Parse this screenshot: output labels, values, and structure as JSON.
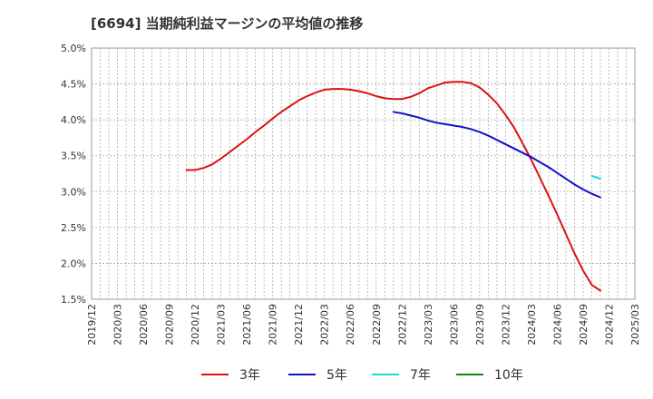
{
  "chart_data": {
    "type": "line",
    "title": "[6694]  当期純利益マージンの平均値の推移",
    "xlabel": "",
    "ylabel": "",
    "ylim": [
      1.5,
      5.0
    ],
    "y_ticks": [
      "5.0%",
      "4.5%",
      "4.0%",
      "3.5%",
      "3.0%",
      "2.5%",
      "2.0%",
      "1.5%"
    ],
    "x_ticks": [
      "2019/12",
      "2020/03",
      "2020/06",
      "2020/09",
      "2020/12",
      "2021/03",
      "2021/06",
      "2021/09",
      "2021/12",
      "2022/03",
      "2022/06",
      "2022/09",
      "2022/12",
      "2023/03",
      "2023/06",
      "2023/09",
      "2023/12",
      "2024/03",
      "2024/06",
      "2024/09",
      "2024/12",
      "2025/03"
    ],
    "grid": true,
    "legend_position": "bottom",
    "series": [
      {
        "name": "3年",
        "color": "#dd1111",
        "points": [
          [
            "2020/11",
            3.3
          ],
          [
            "2020/12",
            3.3
          ],
          [
            "2021/01",
            3.33
          ],
          [
            "2021/02",
            3.38
          ],
          [
            "2021/03",
            3.46
          ],
          [
            "2021/04",
            3.55
          ],
          [
            "2021/05",
            3.64
          ],
          [
            "2021/06",
            3.73
          ],
          [
            "2021/07",
            3.83
          ],
          [
            "2021/08",
            3.92
          ],
          [
            "2021/09",
            4.02
          ],
          [
            "2021/10",
            4.11
          ],
          [
            "2021/11",
            4.19
          ],
          [
            "2021/12",
            4.27
          ],
          [
            "2022/01",
            4.33
          ],
          [
            "2022/02",
            4.38
          ],
          [
            "2022/03",
            4.42
          ],
          [
            "2022/04",
            4.43
          ],
          [
            "2022/05",
            4.43
          ],
          [
            "2022/06",
            4.42
          ],
          [
            "2022/07",
            4.4
          ],
          [
            "2022/08",
            4.37
          ],
          [
            "2022/09",
            4.33
          ],
          [
            "2022/10",
            4.3
          ],
          [
            "2022/11",
            4.29
          ],
          [
            "2022/12",
            4.29
          ],
          [
            "2023/01",
            4.32
          ],
          [
            "2023/02",
            4.37
          ],
          [
            "2023/03",
            4.44
          ],
          [
            "2023/04",
            4.48
          ],
          [
            "2023/05",
            4.52
          ],
          [
            "2023/06",
            4.53
          ],
          [
            "2023/07",
            4.53
          ],
          [
            "2023/08",
            4.51
          ],
          [
            "2023/09",
            4.45
          ],
          [
            "2023/10",
            4.35
          ],
          [
            "2023/11",
            4.23
          ],
          [
            "2023/12",
            4.07
          ],
          [
            "2024/01",
            3.89
          ],
          [
            "2024/02",
            3.67
          ],
          [
            "2024/03",
            3.44
          ],
          [
            "2024/04",
            3.19
          ],
          [
            "2024/05",
            2.94
          ],
          [
            "2024/06",
            2.68
          ],
          [
            "2024/07",
            2.41
          ],
          [
            "2024/08",
            2.14
          ],
          [
            "2024/09",
            1.9
          ],
          [
            "2024/10",
            1.7
          ],
          [
            "2024/11",
            1.62
          ]
        ]
      },
      {
        "name": "5年",
        "color": "#1111cc",
        "points": [
          [
            "2022/11",
            4.11
          ],
          [
            "2022/12",
            4.09
          ],
          [
            "2023/01",
            4.06
          ],
          [
            "2023/02",
            4.03
          ],
          [
            "2023/03",
            3.99
          ],
          [
            "2023/04",
            3.96
          ],
          [
            "2023/05",
            3.94
          ],
          [
            "2023/06",
            3.92
          ],
          [
            "2023/07",
            3.9
          ],
          [
            "2023/08",
            3.87
          ],
          [
            "2023/09",
            3.83
          ],
          [
            "2023/10",
            3.78
          ],
          [
            "2023/11",
            3.72
          ],
          [
            "2023/12",
            3.66
          ],
          [
            "2024/01",
            3.6
          ],
          [
            "2024/02",
            3.54
          ],
          [
            "2024/03",
            3.48
          ],
          [
            "2024/04",
            3.41
          ],
          [
            "2024/05",
            3.34
          ],
          [
            "2024/06",
            3.26
          ],
          [
            "2024/07",
            3.18
          ],
          [
            "2024/08",
            3.1
          ],
          [
            "2024/09",
            3.03
          ],
          [
            "2024/10",
            2.97
          ],
          [
            "2024/11",
            2.92
          ]
        ]
      },
      {
        "name": "7年",
        "color": "#11dddd",
        "points": [
          [
            "2024/10",
            3.22
          ],
          [
            "2024/11",
            3.18
          ]
        ]
      },
      {
        "name": "10年",
        "color": "#118811",
        "points": []
      }
    ]
  }
}
